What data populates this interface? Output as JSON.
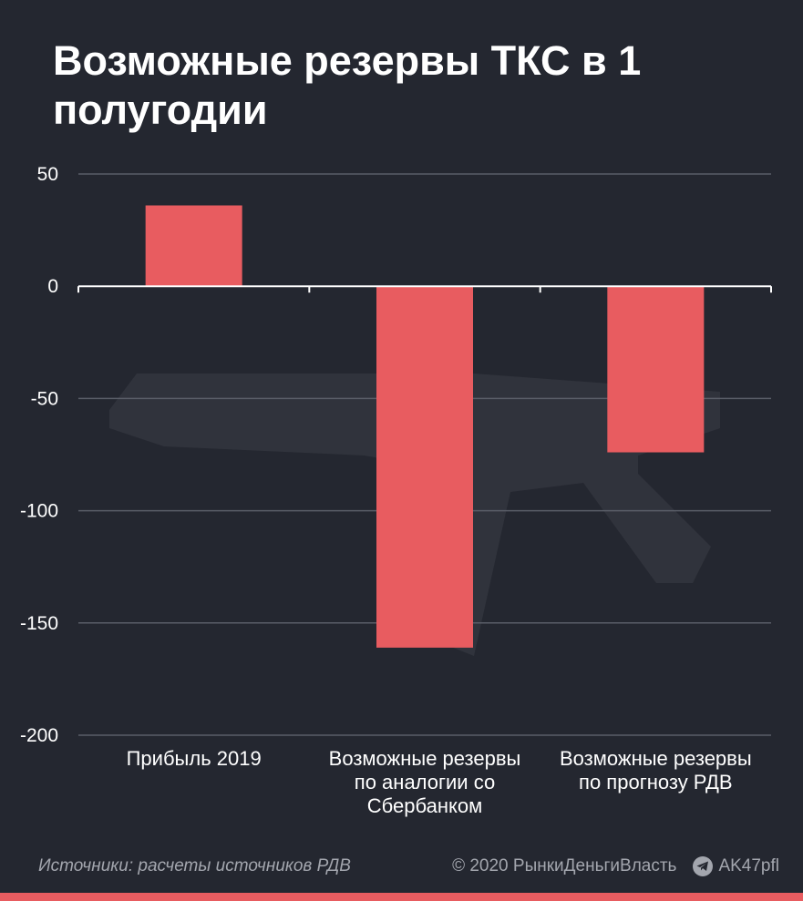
{
  "title": "Возможные резервы ТКС в 1 полугодии",
  "footer": {
    "source": "Источники: расчеты источников РДВ",
    "copyright": "© 2020  РынкиДеньгиВласть",
    "channel": "AK47pfl",
    "channel_icon": "telegram-icon"
  },
  "colors": {
    "background": "#242730",
    "bar": "#e85c60",
    "grid": "#5a5e68",
    "text": "#ffffff",
    "muted": "#a3a6ae"
  },
  "chart_data": {
    "type": "bar",
    "categories": [
      [
        "Прибыль 2019"
      ],
      [
        "Возможные резервы",
        "по аналогии со",
        "Сбербанком"
      ],
      [
        "Возможные резервы",
        "по прогнозу РДВ"
      ]
    ],
    "values": [
      36,
      -161,
      -74
    ],
    "title": "Возможные резервы ТКС в 1 полугодии",
    "xlabel": "",
    "ylabel": "",
    "ylim": [
      -200,
      50
    ],
    "yticks": [
      50,
      0,
      -50,
      -100,
      -150,
      -200
    ],
    "grid": true,
    "legend": "none"
  }
}
